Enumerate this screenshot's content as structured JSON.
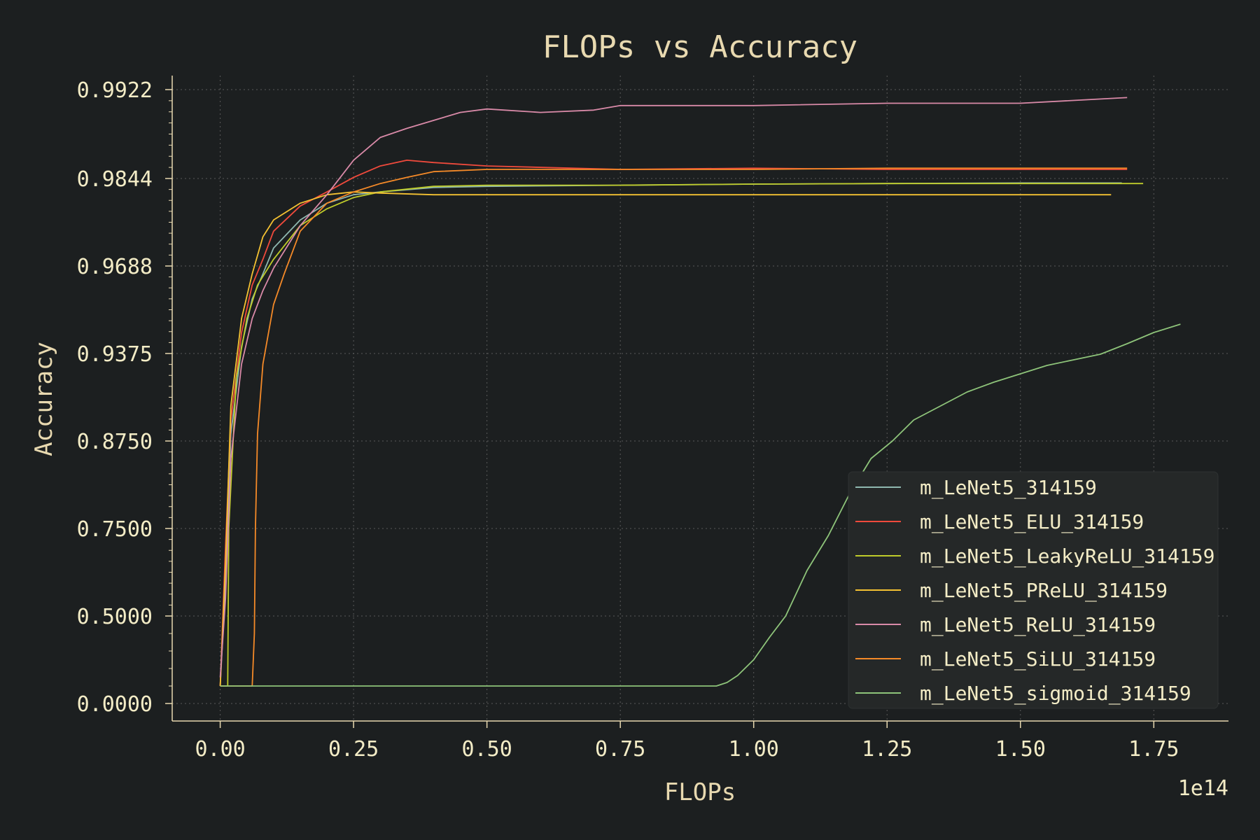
{
  "chart_data": {
    "type": "line",
    "title": "FLOPs vs Accuracy",
    "xlabel": "FLOPs",
    "ylabel": "Accuracy",
    "x_offset_label": "1e14",
    "xlim": [
      -0.09,
      1.89
    ],
    "x_ticks": [
      0.0,
      0.25,
      0.5,
      0.75,
      1.0,
      1.25,
      1.5,
      1.75
    ],
    "x_tick_labels": [
      "0.00",
      "0.25",
      "0.50",
      "0.75",
      "1.00",
      "1.25",
      "1.50",
      "1.75"
    ],
    "y_scale": "logit-like",
    "y_ticks": [
      0.0,
      0.5,
      0.75,
      0.875,
      0.9375,
      0.9688,
      0.9844,
      0.9922
    ],
    "y_tick_labels": [
      "0.0000",
      "0.5000",
      "0.7500",
      "0.8750",
      "0.9375",
      "0.9688",
      "0.9844",
      "0.9922"
    ],
    "grid": true,
    "legend_position": "lower-right",
    "series": [
      {
        "name": "m_LeNet5_314159",
        "color": "#8fb8b0",
        "x": [
          0.0,
          0.01,
          0.02,
          0.04,
          0.06,
          0.08,
          0.1,
          0.15,
          0.2,
          0.25,
          0.3,
          0.4,
          0.5,
          0.75,
          1.0,
          1.25,
          1.5,
          1.69
        ],
        "y": [
          0.1,
          0.6,
          0.88,
          0.94,
          0.957,
          0.966,
          0.972,
          0.977,
          0.98,
          0.9815,
          0.982,
          0.9828,
          0.983,
          0.9832,
          0.9834,
          0.9835,
          0.9836,
          0.9836
        ]
      },
      {
        "name": "m_LeNet5_ELU_314159",
        "color": "#f04a3c",
        "x": [
          0.0,
          0.01,
          0.02,
          0.04,
          0.06,
          0.08,
          0.1,
          0.15,
          0.2,
          0.25,
          0.3,
          0.35,
          0.4,
          0.5,
          0.75,
          1.0,
          1.25,
          1.5,
          1.7
        ],
        "y": [
          0.1,
          0.7,
          0.89,
          0.945,
          0.962,
          0.97,
          0.975,
          0.9795,
          0.982,
          0.9845,
          0.9855,
          0.986,
          0.9858,
          0.9855,
          0.9852,
          0.9853,
          0.9852,
          0.9852,
          0.9852
        ]
      },
      {
        "name": "m_LeNet5_LeakyReLU_314159",
        "color": "#bfcc2a",
        "x": [
          0.0,
          0.014,
          0.016,
          0.03,
          0.05,
          0.07,
          0.1,
          0.15,
          0.2,
          0.25,
          0.3,
          0.4,
          0.5,
          0.75,
          1.0,
          1.25,
          1.5,
          1.73
        ],
        "y": [
          0.1,
          0.1,
          0.75,
          0.92,
          0.95,
          0.962,
          0.97,
          0.976,
          0.979,
          0.981,
          0.982,
          0.983,
          0.9832,
          0.9832,
          0.9834,
          0.9835,
          0.9835,
          0.9835
        ]
      },
      {
        "name": "m_LeNet5_PReLU_314159",
        "color": "#f5c232",
        "x": [
          0.0,
          0.01,
          0.02,
          0.04,
          0.06,
          0.08,
          0.1,
          0.15,
          0.2,
          0.25,
          0.3,
          0.4,
          0.5,
          0.75,
          1.0,
          1.25,
          1.5,
          1.67
        ],
        "y": [
          0.1,
          0.65,
          0.9,
          0.95,
          0.966,
          0.974,
          0.977,
          0.98,
          0.9815,
          0.982,
          0.9818,
          0.9815,
          0.9815,
          0.9815,
          0.9815,
          0.9815,
          0.9815,
          0.9815
        ]
      },
      {
        "name": "m_LeNet5_ReLU_314159",
        "color": "#d98aa8",
        "x": [
          0.0,
          0.01,
          0.02,
          0.04,
          0.06,
          0.08,
          0.1,
          0.15,
          0.2,
          0.25,
          0.3,
          0.35,
          0.4,
          0.45,
          0.5,
          0.6,
          0.7,
          0.75,
          1.0,
          1.25,
          1.5,
          1.7
        ],
        "y": [
          0.15,
          0.55,
          0.85,
          0.93,
          0.95,
          0.96,
          0.968,
          0.976,
          0.9815,
          0.986,
          0.988,
          0.9888,
          0.9895,
          0.9902,
          0.9905,
          0.9902,
          0.9904,
          0.9908,
          0.9908,
          0.991,
          0.991,
          0.9915
        ]
      },
      {
        "name": "m_LeNet5_SiLU_314159",
        "color": "#f58a28",
        "x": [
          0.0,
          0.06,
          0.064,
          0.066,
          0.07,
          0.08,
          0.1,
          0.12,
          0.15,
          0.2,
          0.25,
          0.3,
          0.35,
          0.4,
          0.5,
          0.75,
          1.0,
          1.25,
          1.5,
          1.7
        ],
        "y": [
          0.1,
          0.1,
          0.4,
          0.75,
          0.88,
          0.93,
          0.955,
          0.966,
          0.975,
          0.98,
          0.982,
          0.9835,
          0.9845,
          0.985,
          0.9852,
          0.9852,
          0.9852,
          0.9853,
          0.9853,
          0.9853
        ]
      },
      {
        "name": "m_LeNet5_sigmoid_314159",
        "color": "#8ec47a",
        "x": [
          0.0,
          0.93,
          0.95,
          0.97,
          1.0,
          1.03,
          1.06,
          1.1,
          1.14,
          1.18,
          1.22,
          1.26,
          1.3,
          1.35,
          1.4,
          1.45,
          1.5,
          1.55,
          1.6,
          1.65,
          1.7,
          1.75,
          1.8
        ],
        "y": [
          0.1,
          0.1,
          0.12,
          0.16,
          0.25,
          0.38,
          0.5,
          0.63,
          0.73,
          0.8,
          0.85,
          0.875,
          0.89,
          0.9,
          0.91,
          0.917,
          0.923,
          0.929,
          0.933,
          0.937,
          0.941,
          0.945,
          0.948
        ]
      }
    ]
  }
}
